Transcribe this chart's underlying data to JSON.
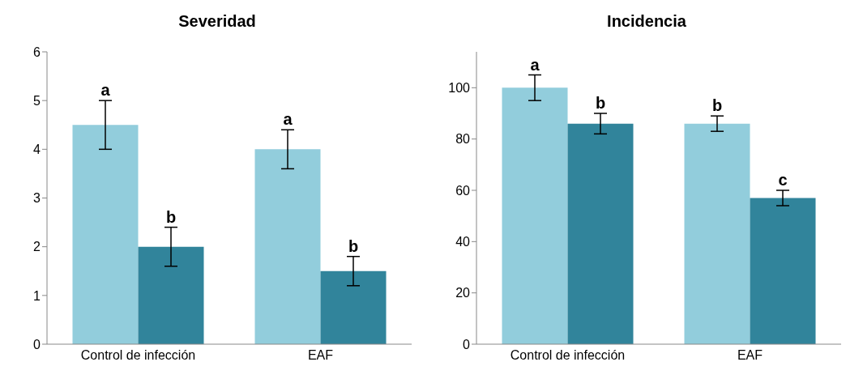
{
  "chart_data": [
    {
      "type": "bar",
      "title": "Severidad",
      "categories": [
        "Control de infección",
        "EAF"
      ],
      "ylim": [
        0,
        6
      ],
      "yticks": [
        0,
        1,
        2,
        3,
        4,
        5,
        6
      ],
      "series": [
        {
          "color": "#92cddc",
          "values": [
            4.5,
            4.0
          ],
          "errors": [
            0.5,
            0.4
          ],
          "value_labels": [
            "a",
            "a"
          ]
        },
        {
          "color": "#31849b",
          "values": [
            2.0,
            1.5
          ],
          "errors": [
            0.4,
            0.3
          ],
          "value_labels": [
            "b",
            "b"
          ]
        }
      ]
    },
    {
      "type": "bar",
      "title": "Incidencia",
      "categories": [
        "Control de infección",
        "EAF"
      ],
      "ylim": [
        0,
        114
      ],
      "yticks": [
        0,
        20,
        40,
        60,
        80,
        100
      ],
      "series": [
        {
          "color": "#92cddc",
          "values": [
            100,
            86
          ],
          "errors": [
            5,
            3
          ],
          "value_labels": [
            "a",
            "b"
          ]
        },
        {
          "color": "#31849b",
          "values": [
            86,
            57
          ],
          "errors": [
            4,
            3
          ],
          "value_labels": [
            "b",
            "c"
          ]
        }
      ]
    }
  ]
}
